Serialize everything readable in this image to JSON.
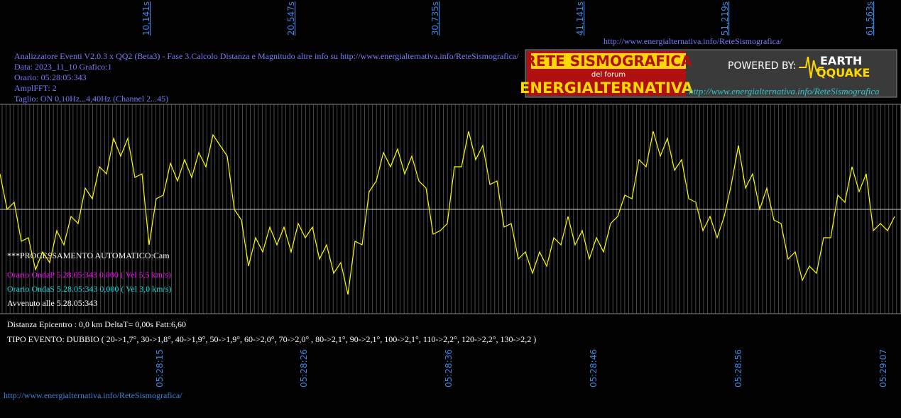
{
  "top_time_labels": [
    "10,141s",
    "20,547s",
    "30,735s",
    "41,141s",
    "51,219s",
    "61,563s"
  ],
  "bottom_time_labels": [
    "05:28:15",
    "05:28:26",
    "05:28:36",
    "05:28:46",
    "05:28:56",
    "05:29:07"
  ],
  "header_url": "http://www.energialternativa.info/ReteSismografica/",
  "info": [
    "Analizzatore Eventi V2.0.3 x QQ2 (Beta3) - Fase 3.Calcolo Distanza e Magnitudo altre info su http://www.energialternativa.info/ReteSismografica/",
    "Data: 2023_11_10 Grafico:1",
    "Orario: 05:28:05:343",
    "AmplFFT: 2",
    "Taglio: ON 0,10Hz...4,40Hz       (Channel 2...45)"
  ],
  "logo": {
    "title": "RETE SISMOGRAFICA",
    "subtitle": "del forum",
    "name": "ENERGIALTERNATIVA",
    "powered": "POWERED BY:",
    "brand_top": "EARTH",
    "brand_bottom": "QQUAKE",
    "url": "http://www.energialternativa.info/ReteSismografica"
  },
  "processing": "***PROCESSAMENTO AUTOMATICO:Cam",
  "onda_p": "Orario OndaP 5.28.05:343  0,000 ( Vel 5,5 km/s)",
  "onda_s": "Orario OndaS 5.28.05:343  0,000 ( Vel 3,0 km/s)",
  "avvenuto": "Avvenuto alle 5.28.05:343",
  "distanza": "Distanza Epicentro : 0,0 km DeltaT= 0,00s  Fatt:6,60",
  "tipo_evento": "TIPO EVENTO: DUBBIO ( 20->1,7°, 30->1,8°, 40->1,9°, 50->1,9°, 60->2,0°, 70->2,0° , 80->2,1°, 90->2,1°, 100->2,1°, 110->2,2°, 120->2,2°, 130->2,2 )",
  "footer_url": "http://www.energialternativa.info/ReteSismografica/",
  "waveform": {
    "color": "#ffff00",
    "values": [
      50,
      0,
      10,
      -45,
      -40,
      -85,
      -60,
      -75,
      -30,
      -50,
      -10,
      -20,
      30,
      15,
      60,
      50,
      100,
      75,
      100,
      45,
      50,
      -50,
      15,
      20,
      65,
      40,
      70,
      45,
      80,
      60,
      105,
      90,
      75,
      0,
      -15,
      -80,
      -40,
      -60,
      -25,
      -50,
      -25,
      -60,
      -20,
      -40,
      -25,
      -70,
      -50,
      -90,
      -75,
      -120,
      -45,
      -50,
      25,
      40,
      80,
      60,
      85,
      50,
      75,
      40,
      30,
      -35,
      -30,
      -20,
      60,
      60,
      110,
      70,
      90,
      35,
      40,
      -25,
      -20,
      -70,
      -60,
      -90,
      -60,
      -80,
      -40,
      -50,
      -10,
      -50,
      -30,
      -70,
      -40,
      -60,
      -20,
      -10,
      20,
      15,
      70,
      60,
      110,
      75,
      100,
      55,
      70,
      15,
      10,
      -30,
      -10,
      -40,
      -10,
      35,
      90,
      30,
      50,
      0,
      30,
      -15,
      -20,
      -70,
      -60,
      -100,
      -80,
      -90,
      -40,
      -40,
      20,
      10,
      60,
      25,
      50,
      -30,
      -20,
      -30,
      -10
    ]
  }
}
